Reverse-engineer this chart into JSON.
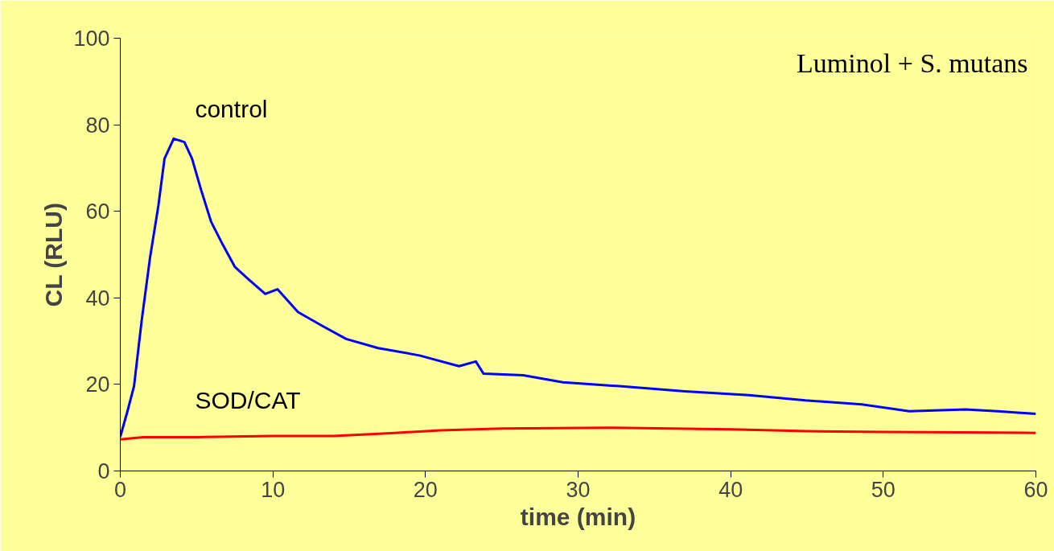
{
  "chart_data": {
    "type": "line",
    "title": "Luminol + S. mutans",
    "xlabel": "time (min)",
    "ylabel": "CL (RLU)",
    "xlim": [
      0,
      60
    ],
    "ylim": [
      0,
      100
    ],
    "xticks": [
      0,
      10,
      20,
      30,
      40,
      50,
      60
    ],
    "yticks": [
      0,
      20,
      40,
      60,
      80,
      100
    ],
    "grid": false,
    "marker": "none",
    "line_style": "solid",
    "series": [
      {
        "name": "control",
        "color": "#0000ff",
        "x": [
          0,
          0.47,
          0.9,
          1.4,
          1.95,
          2.5,
          2.9,
          3.5,
          4.2,
          4.7,
          5.3,
          5.95,
          6.7,
          7.5,
          8.5,
          9.5,
          10.3,
          11.65,
          13.2,
          14.8,
          16.9,
          19.6,
          22.2,
          23.3,
          23.8,
          26.4,
          29,
          32.7,
          37,
          41.2,
          44.9,
          48.6,
          51.7,
          55.4,
          57.5,
          60
        ],
        "values": [
          7.9,
          13.8,
          19.6,
          34.7,
          49.3,
          61.4,
          72.2,
          76.8,
          76,
          72.2,
          64.9,
          57.6,
          52.4,
          47.2,
          44,
          40.9,
          42,
          36.7,
          33.6,
          30.5,
          28.4,
          26.7,
          24.2,
          25.3,
          22.5,
          22.1,
          20.5,
          19.6,
          18.4,
          17.5,
          16.3,
          15.4,
          13.8,
          14.2,
          13.8,
          13.2
        ]
      },
      {
        "name": "SOD/CAT",
        "color": "#ff0000",
        "x": [
          0,
          1.5,
          5,
          10,
          14,
          18,
          21,
          25,
          32,
          40,
          45,
          50,
          55,
          60
        ],
        "values": [
          7.3,
          7.8,
          7.8,
          8.1,
          8.1,
          8.8,
          9.4,
          9.8,
          10,
          9.6,
          9.2,
          9,
          8.9,
          8.8
        ]
      }
    ]
  }
}
